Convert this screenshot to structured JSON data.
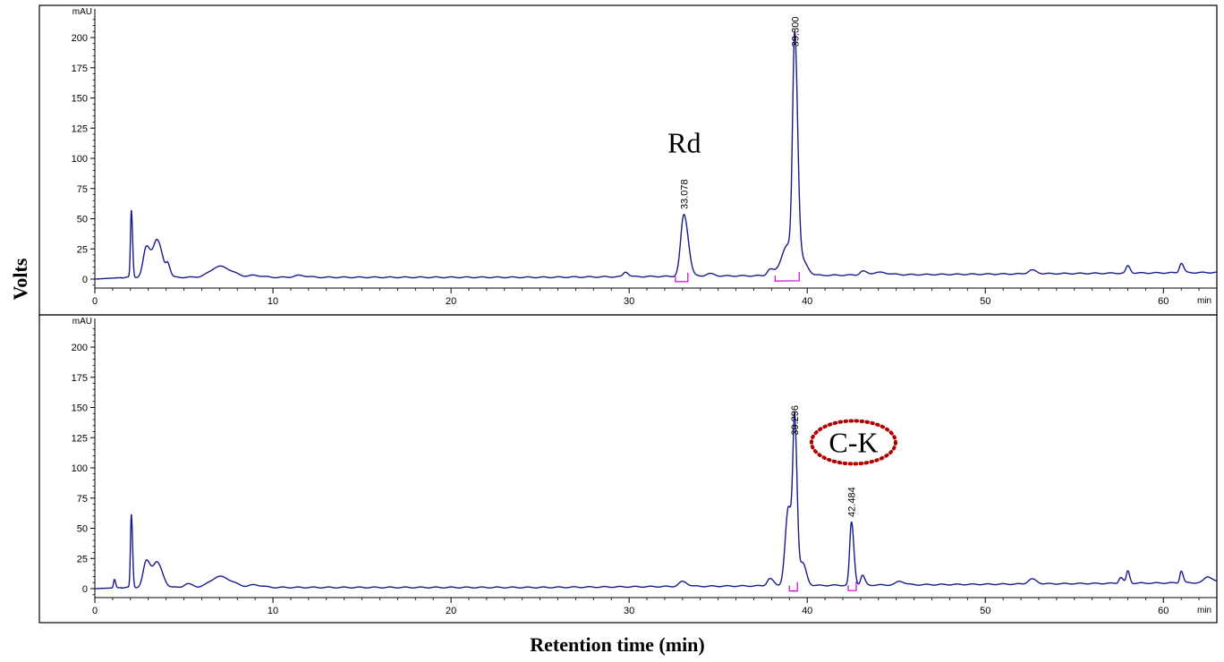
{
  "chart_data": {
    "type": "line",
    "ylabel": "Volts",
    "xlabel": "Retention time (min)",
    "panels": [
      {
        "y_unit": "mAU",
        "x_unit": "min",
        "xlim": [
          0,
          63
        ],
        "ylim": [
          -10,
          225
        ],
        "x_ticks": [
          0,
          10,
          20,
          30,
          40,
          50,
          60
        ],
        "y_ticks": [
          0,
          25,
          50,
          75,
          100,
          125,
          150,
          175,
          200
        ],
        "peaks": [
          {
            "rt": 2.05,
            "height": 55,
            "width": 0.05
          },
          {
            "rt": 2.9,
            "height": 25,
            "width": 0.18
          },
          {
            "rt": 3.5,
            "height": 30,
            "width": 0.22
          },
          {
            "rt": 4.1,
            "height": 9,
            "width": 0.1
          },
          {
            "rt": 7.0,
            "height": 9,
            "width": 0.5
          },
          {
            "rt": 9.0,
            "height": 1.5,
            "width": 0.3
          },
          {
            "rt": 11.5,
            "height": 1.5,
            "width": 0.3
          },
          {
            "rt": 29.8,
            "height": 4,
            "width": 0.12
          },
          {
            "rt": 33.078,
            "height": 51,
            "width": 0.18
          },
          {
            "rt": 34.5,
            "height": 2,
            "width": 0.2
          },
          {
            "rt": 37.9,
            "height": 5,
            "width": 0.15
          },
          {
            "rt": 38.9,
            "height": 25,
            "width": 0.35
          },
          {
            "rt": 39.3,
            "height": 185,
            "width": 0.12
          },
          {
            "rt": 39.8,
            "height": 8,
            "width": 0.2
          },
          {
            "rt": 43.1,
            "height": 3,
            "width": 0.15
          },
          {
            "rt": 44.0,
            "height": 2,
            "width": 0.4
          },
          {
            "rt": 52.6,
            "height": 3,
            "width": 0.2
          },
          {
            "rt": 58.0,
            "height": 6,
            "width": 0.1
          },
          {
            "rt": 61.0,
            "height": 8,
            "width": 0.1
          }
        ],
        "baseline": {
          "start": 0,
          "mid": 1.5,
          "end": 5.5
        },
        "peak_labels": [
          {
            "rt": 33.078,
            "text": "33.078"
          },
          {
            "rt": 39.3,
            "text": "39.300"
          }
        ],
        "integration_marks": [
          {
            "rt_start": 32.6,
            "rt_end": 33.3
          },
          {
            "rt_start": 38.2,
            "rt_end": 39.55
          }
        ],
        "annotation": {
          "text": "Rd",
          "rt": 33.1,
          "y": 105,
          "circled": false
        }
      },
      {
        "y_unit": "mAU",
        "x_unit": "min",
        "xlim": [
          0,
          63
        ],
        "ylim": [
          -10,
          225
        ],
        "x_ticks": [
          0,
          10,
          20,
          30,
          40,
          50,
          60
        ],
        "y_ticks": [
          0,
          25,
          50,
          75,
          100,
          125,
          150,
          175,
          200
        ],
        "peaks": [
          {
            "rt": 1.1,
            "height": 7,
            "width": 0.05
          },
          {
            "rt": 2.05,
            "height": 60,
            "width": 0.05
          },
          {
            "rt": 2.9,
            "height": 22,
            "width": 0.18
          },
          {
            "rt": 3.5,
            "height": 20,
            "width": 0.22
          },
          {
            "rt": 5.2,
            "height": 3,
            "width": 0.2
          },
          {
            "rt": 7.0,
            "height": 9,
            "width": 0.5
          },
          {
            "rt": 9.0,
            "height": 2,
            "width": 0.3
          },
          {
            "rt": 33.0,
            "height": 4,
            "width": 0.2
          },
          {
            "rt": 37.9,
            "height": 6,
            "width": 0.15
          },
          {
            "rt": 38.95,
            "height": 65,
            "width": 0.18
          },
          {
            "rt": 39.3,
            "height": 120,
            "width": 0.1
          },
          {
            "rt": 39.75,
            "height": 18,
            "width": 0.15
          },
          {
            "rt": 42.484,
            "height": 52,
            "width": 0.1
          },
          {
            "rt": 43.1,
            "height": 8,
            "width": 0.1
          },
          {
            "rt": 45.2,
            "height": 3,
            "width": 0.2
          },
          {
            "rt": 52.6,
            "height": 4,
            "width": 0.2
          },
          {
            "rt": 57.6,
            "height": 5,
            "width": 0.1
          },
          {
            "rt": 58.0,
            "height": 10,
            "width": 0.08
          },
          {
            "rt": 61.0,
            "height": 10,
            "width": 0.08
          },
          {
            "rt": 62.5,
            "height": 5,
            "width": 0.2
          }
        ],
        "baseline": {
          "start": 0,
          "mid": 1.0,
          "end": 5.0
        },
        "peak_labels": [
          {
            "rt": 39.296,
            "text": "39.296"
          },
          {
            "rt": 42.484,
            "text": "42.484"
          }
        ],
        "integration_marks": [
          {
            "rt_start": 39.0,
            "rt_end": 39.45
          },
          {
            "rt_start": 42.3,
            "rt_end": 42.75
          }
        ],
        "annotation": {
          "text": "C-K",
          "rt": 42.6,
          "y": 113,
          "circled": true
        }
      }
    ]
  }
}
